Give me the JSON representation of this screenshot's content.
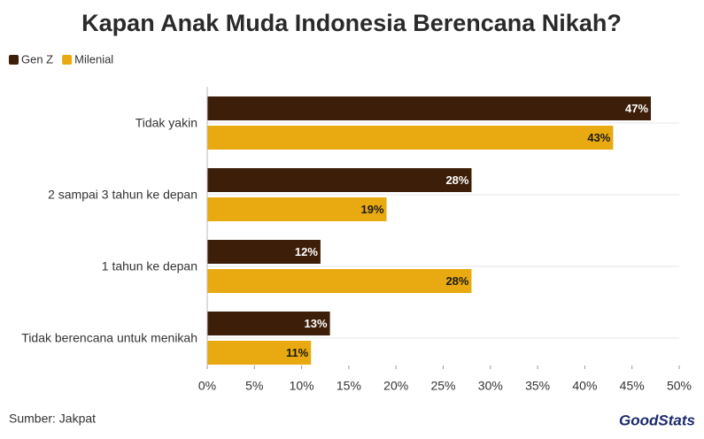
{
  "chart_data": {
    "type": "bar",
    "orientation": "horizontal",
    "title": "Kapan Anak Muda Indonesia Berencana Nikah?",
    "categories": [
      "Tidak yakin",
      "2 sampai 3 tahun ke depan",
      "1 tahun ke depan",
      "Tidak berencana untuk menikah"
    ],
    "series": [
      {
        "name": "Gen Z",
        "color": "#3d1e08",
        "values": [
          47,
          28,
          12,
          13
        ],
        "value_labels": [
          "47%",
          "28%",
          "12%",
          "13%"
        ]
      },
      {
        "name": "Milenial",
        "color": "#e8aa10",
        "values": [
          43,
          19,
          28,
          11
        ],
        "value_labels": [
          "43%",
          "19%",
          "28%",
          "11%"
        ]
      }
    ],
    "xlim": [
      0,
      50
    ],
    "xticks": [
      {
        "value": 0,
        "label": "0%"
      },
      {
        "value": 5,
        "label": "5%"
      },
      {
        "value": 10,
        "label": "10%"
      },
      {
        "value": 15,
        "label": "15%"
      },
      {
        "value": 20,
        "label": "20%"
      },
      {
        "value": 25,
        "label": "25%"
      },
      {
        "value": 30,
        "label": "30%"
      },
      {
        "value": 35,
        "label": "35%"
      },
      {
        "value": 40,
        "label": "40%"
      },
      {
        "value": 45,
        "label": "45%"
      },
      {
        "value": 50,
        "label": "50%"
      }
    ],
    "grid": true,
    "legend": "top-left",
    "source": "Sumber: Jakpat",
    "logo": "GoodStats"
  }
}
